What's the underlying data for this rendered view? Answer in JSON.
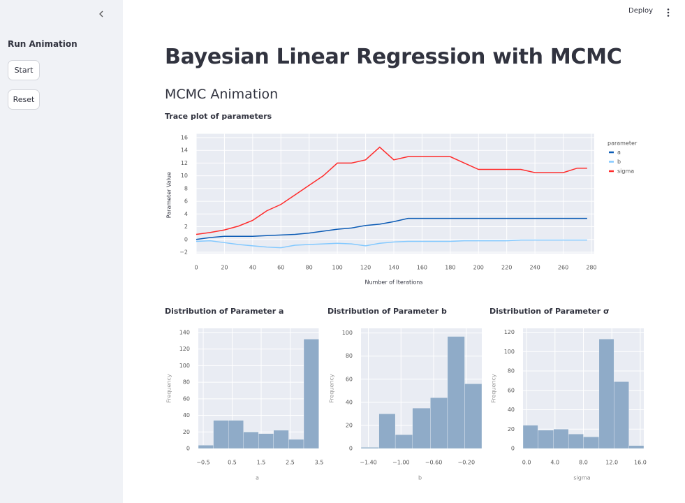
{
  "sidebar": {
    "title": "Run Animation",
    "buttons": [
      "Start",
      "Reset"
    ]
  },
  "toolbar": {
    "deploy": "Deploy"
  },
  "header": {
    "title": "Bayesian Linear Regression with MCMC",
    "subtitle": "MCMC Animation"
  },
  "chart_data": [
    {
      "type": "line",
      "title": "Trace plot of parameters",
      "x_label": "Number of Iterations",
      "y_label": "Parameter Value",
      "legend_title": "parameter",
      "legend": "right",
      "grid": true,
      "x": [
        0,
        10,
        20,
        30,
        40,
        50,
        60,
        70,
        80,
        90,
        100,
        110,
        120,
        130,
        140,
        150,
        160,
        170,
        180,
        190,
        200,
        210,
        220,
        230,
        240,
        250,
        260,
        270,
        277
      ],
      "series": [
        {
          "name": "a",
          "color": "#0b5bb5",
          "values": [
            0,
            0.3,
            0.5,
            0.5,
            0.5,
            0.6,
            0.7,
            0.8,
            1.0,
            1.3,
            1.6,
            1.8,
            2.2,
            2.4,
            2.8,
            3.3,
            3.3,
            3.3,
            3.3,
            3.3,
            3.3,
            3.3,
            3.3,
            3.3,
            3.3,
            3.3,
            3.3,
            3.3,
            3.3
          ]
        },
        {
          "name": "b",
          "color": "#83c9ff",
          "values": [
            -0.3,
            -0.2,
            -0.5,
            -0.8,
            -1.0,
            -1.2,
            -1.3,
            -0.9,
            -0.8,
            -0.7,
            -0.6,
            -0.7,
            -1.0,
            -0.6,
            -0.4,
            -0.3,
            -0.3,
            -0.3,
            -0.3,
            -0.2,
            -0.2,
            -0.2,
            -0.2,
            -0.1,
            -0.1,
            -0.1,
            -0.1,
            -0.1,
            -0.1
          ]
        },
        {
          "name": "sigma",
          "color": "#ff2b2b",
          "values": [
            0.8,
            1.1,
            1.5,
            2.1,
            3.0,
            4.5,
            5.5,
            7.0,
            8.5,
            10.0,
            12.0,
            12.0,
            12.5,
            14.5,
            12.5,
            13.0,
            13.0,
            13.0,
            13.0,
            12.0,
            11.0,
            11.0,
            11.0,
            11.0,
            10.5,
            10.5,
            10.5,
            11.2,
            11.2
          ]
        }
      ],
      "xlim": [
        0,
        282
      ],
      "xticks": [
        0,
        20,
        40,
        60,
        80,
        100,
        120,
        140,
        160,
        180,
        200,
        220,
        240,
        260,
        280
      ],
      "ylim": [
        -2.2,
        16.6
      ],
      "yticks": [
        {
          "value": -2,
          "label": "−2"
        },
        0,
        2,
        4,
        6,
        8,
        10,
        12,
        14,
        16
      ]
    },
    {
      "type": "histogram",
      "title": "Distribution of Parameter a",
      "x_label": "a",
      "y_label": "Frequency",
      "color": "#8fabc8",
      "grid": true,
      "bins": [
        -0.67,
        -0.15,
        0.37,
        0.89,
        1.41,
        1.93,
        2.45,
        2.97,
        3.49
      ],
      "values": [
        4,
        34,
        34,
        20,
        18,
        22,
        11,
        132
      ],
      "xlim": [
        -0.67,
        3.5
      ],
      "xticks": [
        {
          "value": -0.5,
          "label": "−0.5"
        },
        0.5,
        1.5,
        2.5,
        3.5
      ],
      "ylim": [
        0,
        145
      ],
      "yticks": [
        0,
        20,
        40,
        60,
        80,
        100,
        120,
        140
      ]
    },
    {
      "type": "histogram",
      "title": "Distribution of Parameter b",
      "x_label": "b",
      "y_label": "Frequency",
      "color": "#8fabc8",
      "grid": true,
      "bins": [
        -1.49,
        -1.27,
        -1.07,
        -0.86,
        -0.64,
        -0.43,
        -0.22,
        -0.01
      ],
      "values": [
        1,
        30,
        12,
        35,
        44,
        97,
        56
      ],
      "xlim": [
        -1.49,
        -0.01
      ],
      "xticks": [
        {
          "value": -1.4,
          "label": "−1.40"
        },
        {
          "value": -1.0,
          "label": "−1.00"
        },
        {
          "value": -0.6,
          "label": "−0.60"
        },
        {
          "value": -0.2,
          "label": "−0.20"
        }
      ],
      "ylim": [
        0,
        104
      ],
      "yticks": [
        0,
        20,
        40,
        60,
        80,
        100
      ]
    },
    {
      "type": "histogram",
      "title": "Distribution of Parameter σ",
      "x_label": "sigma",
      "y_label": "Frequency",
      "color": "#8fabc8",
      "grid": true,
      "bins": [
        -0.5,
        1.6,
        3.8,
        5.9,
        8.0,
        10.2,
        12.3,
        14.4,
        16.5
      ],
      "values": [
        24,
        19,
        20,
        15,
        12,
        113,
        69,
        3
      ],
      "xlim": [
        -0.5,
        16.5
      ],
      "xticks": [
        {
          "value": 0,
          "label": "0.0"
        },
        {
          "value": 4,
          "label": "4.0"
        },
        {
          "value": 8,
          "label": "8.0"
        },
        {
          "value": 12,
          "label": "12.0"
        },
        {
          "value": 16,
          "label": "16.0"
        }
      ],
      "ylim": [
        0,
        124
      ],
      "yticks": [
        0,
        20,
        40,
        60,
        80,
        100,
        120
      ]
    }
  ]
}
